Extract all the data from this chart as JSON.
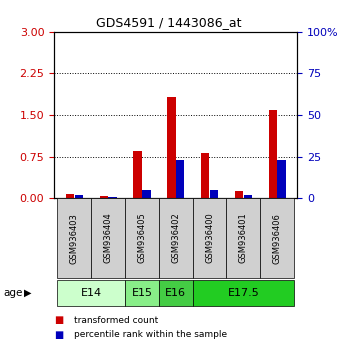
{
  "title": "GDS4591 / 1443086_at",
  "samples": [
    "GSM936403",
    "GSM936404",
    "GSM936405",
    "GSM936402",
    "GSM936400",
    "GSM936401",
    "GSM936406"
  ],
  "red_values": [
    0.08,
    0.04,
    0.85,
    1.82,
    0.82,
    0.13,
    1.6
  ],
  "blue_values_pct": [
    2,
    1,
    5,
    23,
    5,
    2,
    23
  ],
  "ylim_left": [
    0,
    3
  ],
  "ylim_right": [
    0,
    100
  ],
  "yticks_left": [
    0,
    0.75,
    1.5,
    2.25,
    3
  ],
  "yticks_right": [
    0,
    25,
    50,
    75,
    100
  ],
  "age_groups": [
    {
      "label": "E14",
      "start": 0,
      "end": 1,
      "color": "#ccffcc"
    },
    {
      "label": "E15",
      "start": 2,
      "end": 2,
      "color": "#88ee88"
    },
    {
      "label": "E16",
      "start": 3,
      "end": 3,
      "color": "#44cc44"
    },
    {
      "label": "E17.5",
      "start": 4,
      "end": 6,
      "color": "#22cc22"
    }
  ],
  "red_color": "#cc0000",
  "blue_color": "#0000bb",
  "legend_red": "transformed count",
  "legend_blue": "percentile rank within the sample",
  "left_label_color": "#cc0000",
  "right_label_color": "#0000bb",
  "sample_box_color": "#d0d0d0"
}
